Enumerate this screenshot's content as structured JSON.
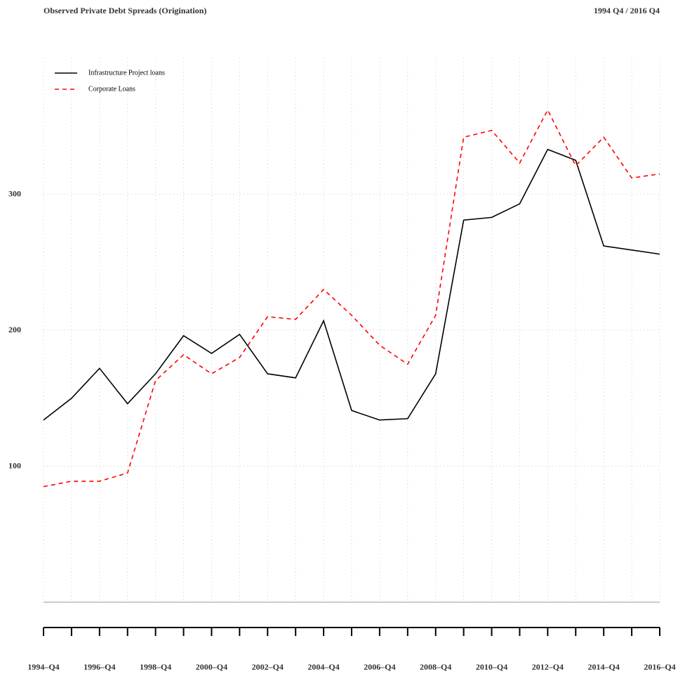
{
  "chart_data": {
    "type": "line",
    "title": "Observed Private Debt Spreads (Origination)",
    "subtitle": "1994 Q4 / 2016 Q4",
    "categories": [
      "1994–Q4",
      null,
      "1996–Q4",
      null,
      "1998–Q4",
      null,
      "2000–Q4",
      null,
      "2002–Q4",
      null,
      "2004–Q4",
      null,
      "2006–Q4",
      null,
      "2008–Q4",
      null,
      "2010–Q4",
      null,
      "2012–Q4",
      null,
      "2014–Q4",
      null,
      "2016–Q4"
    ],
    "series": [
      {
        "name": "Infrastructure Project loans",
        "color": "#000000",
        "style": "solid",
        "values": [
          134,
          150,
          172,
          146,
          168,
          196,
          183,
          197,
          168,
          165,
          207,
          141,
          134,
          135,
          168,
          281,
          283,
          293,
          333,
          325,
          262,
          259,
          256
        ]
      },
      {
        "name": "Corporate Loans",
        "color": "#ff0000",
        "style": "dashed",
        "values": [
          85,
          89,
          89,
          95,
          163,
          182,
          168,
          180,
          210,
          208,
          230,
          211,
          189,
          175,
          211,
          342,
          347,
          323,
          362,
          321,
          342,
          312,
          315
        ]
      }
    ],
    "ylim": [
      0,
      400
    ],
    "yticks": [
      100,
      200,
      300
    ],
    "grid": true,
    "legend": "top-left"
  }
}
